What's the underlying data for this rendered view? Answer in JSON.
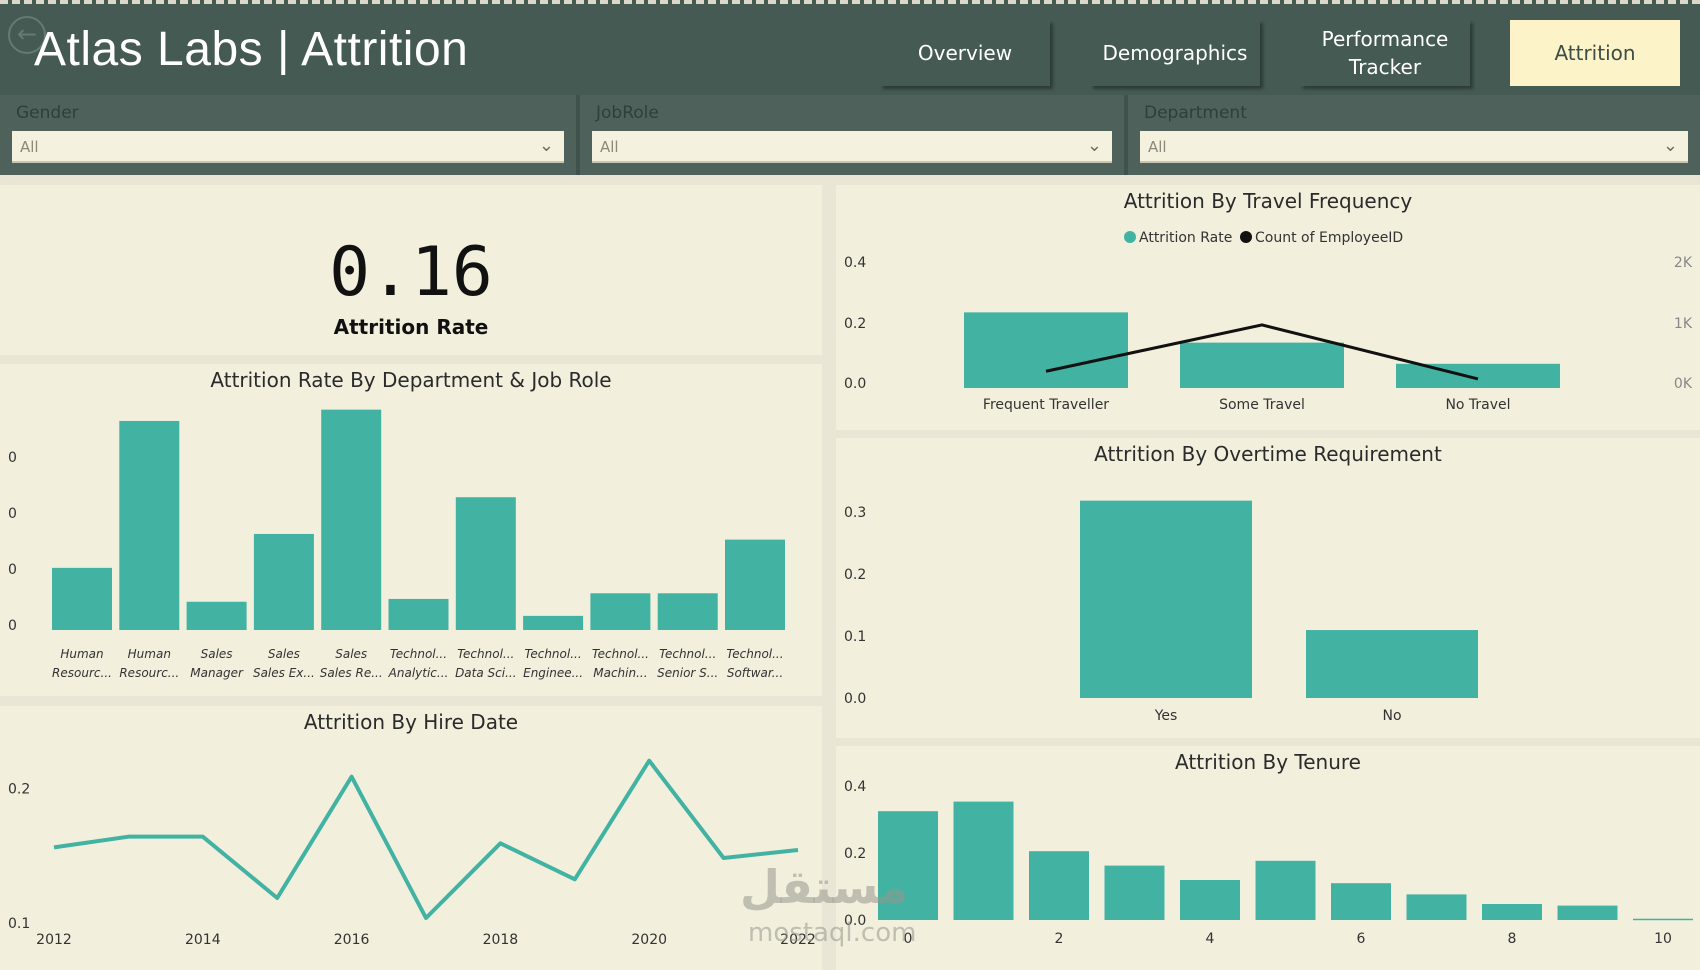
{
  "header": {
    "title": "Atlas Labs | Attrition",
    "nav": [
      {
        "label": "Overview",
        "active": false
      },
      {
        "label": "Demographics",
        "active": false
      },
      {
        "label": "Performance\nTracker",
        "active": false
      },
      {
        "label": "Attrition",
        "active": true
      }
    ]
  },
  "filters": [
    {
      "label": "Gender",
      "value": "All"
    },
    {
      "label": "JobRole",
      "value": "All"
    },
    {
      "label": "Department",
      "value": "All"
    }
  ],
  "kpi": {
    "value": "0.16",
    "label": "Attrition Rate"
  },
  "colors": {
    "teal": "#42b3a3",
    "header": "#455a53",
    "panel": "#f2efdd",
    "active_tab": "#fdf3c9"
  },
  "chart_data": [
    {
      "id": "dept_role",
      "type": "bar",
      "title": "Attrition Rate By Department & Job Role",
      "y_tick_labels": [
        "0",
        "0",
        "0",
        "0"
      ],
      "categories": [
        [
          "Human",
          "Resourc..."
        ],
        [
          "Human",
          "Resourc..."
        ],
        [
          "Sales",
          "Manager"
        ],
        [
          "Sales",
          "Sales Ex..."
        ],
        [
          "Sales",
          "Sales Re..."
        ],
        [
          "Technol...",
          "Analytic..."
        ],
        [
          "Technol...",
          "Data Sci..."
        ],
        [
          "Technol...",
          "Enginee..."
        ],
        [
          "Technol...",
          "Machin..."
        ],
        [
          "Technol...",
          "Senior S..."
        ],
        [
          "Technol...",
          "Softwar..."
        ]
      ],
      "values": [
        0.11,
        0.37,
        0.05,
        0.17,
        0.39,
        0.055,
        0.235,
        0.025,
        0.065,
        0.065,
        0.16
      ],
      "ylim": [
        0,
        0.4
      ]
    },
    {
      "id": "travel",
      "type": "bar+line",
      "title": "Attrition By Travel Frequency",
      "legend": [
        "Attrition Rate",
        "Count of EmployeeID"
      ],
      "categories": [
        "Frequent Traveller",
        "Some Travel",
        "No Travel"
      ],
      "series": [
        {
          "name": "Attrition Rate",
          "values": [
            0.25,
            0.15,
            0.08
          ]
        },
        {
          "name": "Count of EmployeeID",
          "values": [
            277,
            1043,
            150
          ]
        }
      ],
      "y_ticks": [
        "0.0",
        "0.2",
        "0.4"
      ],
      "y2_ticks": [
        "0K",
        "1K",
        "2K"
      ],
      "ylim": [
        0,
        0.4
      ],
      "y2lim": [
        0,
        2000
      ]
    },
    {
      "id": "overtime",
      "type": "bar",
      "title": "Attrition By Overtime Requirement",
      "categories": [
        "Yes",
        "No"
      ],
      "values": [
        0.305,
        0.105
      ],
      "y_ticks": [
        "0.0",
        "0.1",
        "0.2",
        "0.3"
      ],
      "ylim": [
        0,
        0.34
      ]
    },
    {
      "id": "hire_date",
      "type": "line",
      "title": "Attrition By Hire Date",
      "x": [
        2012,
        2013,
        2014,
        2015,
        2016,
        2017,
        2018,
        2019,
        2020,
        2021,
        2022
      ],
      "values": [
        0.156,
        0.164,
        0.164,
        0.118,
        0.209,
        0.103,
        0.159,
        0.132,
        0.221,
        0.148,
        0.154
      ],
      "x_ticks": [
        "2012",
        "2014",
        "2016",
        "2018",
        "2020",
        "2022"
      ],
      "y_ticks": [
        "0.1",
        "0.2"
      ],
      "ylim": [
        0.1,
        0.25
      ]
    },
    {
      "id": "tenure",
      "type": "bar",
      "title": "Attrition By Tenure",
      "categories": [
        0,
        1,
        2,
        3,
        4,
        5,
        6,
        7,
        8,
        9,
        10
      ],
      "values": [
        0.34,
        0.37,
        0.215,
        0.17,
        0.125,
        0.185,
        0.115,
        0.08,
        0.05,
        0.045,
        0.004
      ],
      "x_ticks": [
        "0",
        "2",
        "4",
        "6",
        "8",
        "10"
      ],
      "y_ticks": [
        "0.0",
        "0.2",
        "0.4"
      ],
      "ylim": [
        0,
        0.45
      ]
    }
  ],
  "watermark": {
    "text": "مستقل",
    "sub": "mostaql.com"
  }
}
